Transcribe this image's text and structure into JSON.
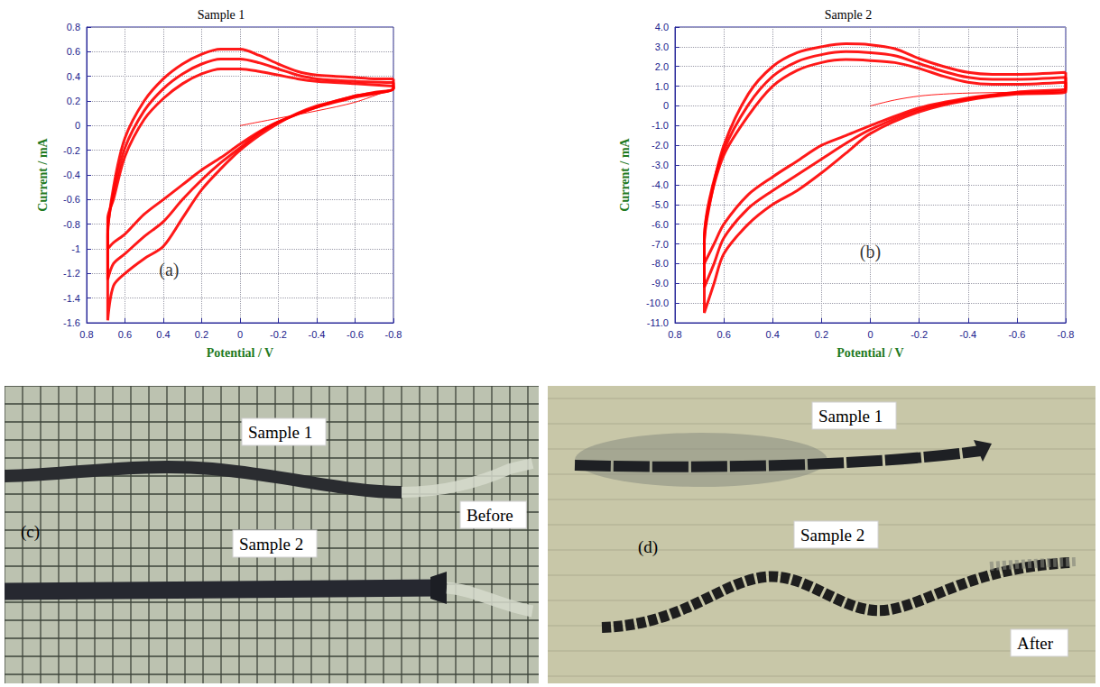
{
  "chart_data": [
    {
      "type": "line",
      "title": "Sample 1",
      "x_label": "Potential / V",
      "y_label": "Current / mA",
      "xlim": [
        0.8,
        -0.8
      ],
      "xticks": [
        0.8,
        0.6,
        0.4,
        0.2,
        0,
        -0.2,
        -0.4,
        -0.6,
        -0.8
      ],
      "ylim": [
        -1.6,
        0.8
      ],
      "yticks": [
        -1.6,
        -1.4,
        -1.2,
        -1,
        -0.8,
        -0.6,
        -0.4,
        -0.2,
        0,
        0.2,
        0.4,
        0.6,
        0.8
      ],
      "grid": true,
      "annotations": [
        {
          "text": "(a)",
          "x": 0.37,
          "y": -1.17
        }
      ],
      "series": [
        {
          "color": "#ff0000",
          "line_style": "solid",
          "values": [
            [
              0,
              0
            ],
            [
              -0.2,
              0.06
            ],
            [
              -0.4,
              0.12
            ],
            [
              -0.6,
              0.19
            ],
            [
              -0.8,
              0.3
            ]
          ]
        },
        {
          "color": "#ff0000",
          "line_style": "solid",
          "values": [
            [
              -0.8,
              0.38
            ],
            [
              -0.7,
              0.38
            ],
            [
              -0.6,
              0.39
            ],
            [
              -0.5,
              0.4
            ],
            [
              -0.4,
              0.41
            ],
            [
              -0.3,
              0.44
            ],
            [
              -0.2,
              0.5
            ],
            [
              -0.1,
              0.57
            ],
            [
              0,
              0.62
            ],
            [
              0.1,
              0.62
            ],
            [
              0.2,
              0.58
            ],
            [
              0.3,
              0.5
            ],
            [
              0.4,
              0.38
            ],
            [
              0.5,
              0.2
            ],
            [
              0.6,
              -0.1
            ],
            [
              0.66,
              -0.5
            ],
            [
              0.69,
              -0.9
            ],
            [
              0.69,
              -1.58
            ],
            [
              0.66,
              -1.3
            ],
            [
              0.6,
              -1.2
            ],
            [
              0.5,
              -1.08
            ],
            [
              0.4,
              -0.98
            ],
            [
              0.3,
              -0.75
            ],
            [
              0.2,
              -0.52
            ],
            [
              0.1,
              -0.35
            ],
            [
              0,
              -0.2
            ],
            [
              -0.1,
              -0.08
            ],
            [
              -0.2,
              0.02
            ],
            [
              -0.3,
              0.1
            ],
            [
              -0.4,
              0.16
            ],
            [
              -0.5,
              0.2
            ],
            [
              -0.6,
              0.24
            ],
            [
              -0.7,
              0.27
            ],
            [
              -0.8,
              0.3
            ],
            [
              -0.8,
              0.38
            ]
          ]
        },
        {
          "color": "#ff0000",
          "line_style": "solid",
          "values": [
            [
              -0.8,
              0.35
            ],
            [
              -0.6,
              0.36
            ],
            [
              -0.4,
              0.38
            ],
            [
              -0.3,
              0.41
            ],
            [
              -0.2,
              0.46
            ],
            [
              -0.1,
              0.51
            ],
            [
              0,
              0.54
            ],
            [
              0.1,
              0.54
            ],
            [
              0.2,
              0.5
            ],
            [
              0.3,
              0.42
            ],
            [
              0.4,
              0.3
            ],
            [
              0.5,
              0.12
            ],
            [
              0.6,
              -0.18
            ],
            [
              0.66,
              -0.55
            ],
            [
              0.69,
              -0.85
            ],
            [
              0.69,
              -1.25
            ],
            [
              0.66,
              -1.12
            ],
            [
              0.6,
              -1.04
            ],
            [
              0.5,
              -0.9
            ],
            [
              0.4,
              -0.78
            ],
            [
              0.3,
              -0.6
            ],
            [
              0.2,
              -0.44
            ],
            [
              0.1,
              -0.3
            ],
            [
              0,
              -0.18
            ],
            [
              -0.1,
              -0.06
            ],
            [
              -0.2,
              0.03
            ],
            [
              -0.4,
              0.15
            ],
            [
              -0.6,
              0.24
            ],
            [
              -0.8,
              0.3
            ],
            [
              -0.8,
              0.35
            ]
          ]
        },
        {
          "color": "#ff0000",
          "line_style": "solid",
          "values": [
            [
              -0.8,
              0.32
            ],
            [
              -0.6,
              0.34
            ],
            [
              -0.4,
              0.36
            ],
            [
              -0.3,
              0.38
            ],
            [
              -0.2,
              0.41
            ],
            [
              -0.1,
              0.44
            ],
            [
              0,
              0.46
            ],
            [
              0.1,
              0.46
            ],
            [
              0.2,
              0.42
            ],
            [
              0.3,
              0.34
            ],
            [
              0.4,
              0.22
            ],
            [
              0.5,
              0.05
            ],
            [
              0.6,
              -0.25
            ],
            [
              0.66,
              -0.6
            ],
            [
              0.69,
              -0.75
            ],
            [
              0.69,
              -1.0
            ],
            [
              0.66,
              -0.95
            ],
            [
              0.6,
              -0.88
            ],
            [
              0.5,
              -0.72
            ],
            [
              0.4,
              -0.6
            ],
            [
              0.3,
              -0.48
            ],
            [
              0.2,
              -0.36
            ],
            [
              0.1,
              -0.26
            ],
            [
              0,
              -0.15
            ],
            [
              -0.1,
              -0.05
            ],
            [
              -0.2,
              0.03
            ],
            [
              -0.4,
              0.15
            ],
            [
              -0.6,
              0.23
            ],
            [
              -0.8,
              0.3
            ],
            [
              -0.8,
              0.32
            ]
          ]
        }
      ]
    },
    {
      "type": "line",
      "title": "Sample 2",
      "x_label": "Potential / V",
      "y_label": "Current / mA",
      "xlim": [
        0.8,
        -0.8
      ],
      "xticks": [
        0.8,
        0.6,
        0.4,
        0.2,
        0,
        -0.2,
        -0.4,
        -0.6,
        -0.8
      ],
      "ylim": [
        -11,
        4
      ],
      "yticks": [
        {
          "value": -11,
          "label": "-11.0"
        },
        {
          "value": -10,
          "label": "-10.0"
        },
        {
          "value": -9,
          "label": "-9.0"
        },
        {
          "value": -8,
          "label": "-8.0"
        },
        {
          "value": -7,
          "label": "-7.0"
        },
        {
          "value": -6,
          "label": "-6.0"
        },
        {
          "value": -5,
          "label": "-5.0"
        },
        {
          "value": -4,
          "label": "-4.0"
        },
        {
          "value": -3,
          "label": "-3.0"
        },
        {
          "value": -2,
          "label": "-2.0"
        },
        {
          "value": -1,
          "label": "-1.0"
        },
        0,
        {
          "value": 1,
          "label": "1.0"
        },
        {
          "value": 2,
          "label": "2.0"
        },
        {
          "value": 3,
          "label": "3.0"
        },
        {
          "value": 4,
          "label": "4.0"
        }
      ],
      "grid": true,
      "annotations": [
        {
          "text": "(b)",
          "x": 0.0,
          "y": -7.4
        }
      ],
      "series": [
        {
          "color": "#ff0000",
          "line_style": "solid",
          "values": [
            [
              0,
              0
            ],
            [
              -0.1,
              0.3
            ],
            [
              -0.2,
              0.5
            ],
            [
              -0.3,
              0.6
            ],
            [
              -0.4,
              0.65
            ],
            [
              -0.6,
              0.7
            ],
            [
              -0.8,
              0.8
            ]
          ]
        },
        {
          "color": "#ff0000",
          "line_style": "solid",
          "values": [
            [
              -0.8,
              1.7
            ],
            [
              -0.6,
              1.6
            ],
            [
              -0.5,
              1.6
            ],
            [
              -0.4,
              1.7
            ],
            [
              -0.3,
              2.0
            ],
            [
              -0.2,
              2.4
            ],
            [
              -0.1,
              2.9
            ],
            [
              0,
              3.1
            ],
            [
              0.1,
              3.15
            ],
            [
              0.2,
              3.0
            ],
            [
              0.3,
              2.7
            ],
            [
              0.4,
              2.0
            ],
            [
              0.5,
              0.6
            ],
            [
              0.6,
              -2.0
            ],
            [
              0.65,
              -4.5
            ],
            [
              0.68,
              -7.0
            ],
            [
              0.68,
              -10.5
            ],
            [
              0.64,
              -9.0
            ],
            [
              0.6,
              -7.5
            ],
            [
              0.5,
              -6.0
            ],
            [
              0.4,
              -5.0
            ],
            [
              0.3,
              -4.3
            ],
            [
              0.2,
              -3.4
            ],
            [
              0.1,
              -2.4
            ],
            [
              0,
              -1.4
            ],
            [
              -0.2,
              -0.3
            ],
            [
              -0.4,
              0.3
            ],
            [
              -0.6,
              0.6
            ],
            [
              -0.8,
              0.7
            ],
            [
              -0.8,
              1.7
            ]
          ]
        },
        {
          "color": "#ff0000",
          "line_style": "solid",
          "values": [
            [
              -0.8,
              1.45
            ],
            [
              -0.6,
              1.35
            ],
            [
              -0.5,
              1.35
            ],
            [
              -0.4,
              1.45
            ],
            [
              -0.3,
              1.75
            ],
            [
              -0.2,
              2.15
            ],
            [
              -0.1,
              2.55
            ],
            [
              0,
              2.7
            ],
            [
              0.1,
              2.75
            ],
            [
              0.2,
              2.6
            ],
            [
              0.3,
              2.25
            ],
            [
              0.4,
              1.5
            ],
            [
              0.5,
              0.05
            ],
            [
              0.6,
              -2.25
            ],
            [
              0.66,
              -4.8
            ],
            [
              0.68,
              -6.9
            ],
            [
              0.68,
              -9.2
            ],
            [
              0.64,
              -8.0
            ],
            [
              0.6,
              -6.7
            ],
            [
              0.5,
              -5.2
            ],
            [
              0.4,
              -4.3
            ],
            [
              0.3,
              -3.5
            ],
            [
              0.2,
              -2.7
            ],
            [
              0.1,
              -1.9
            ],
            [
              0,
              -1.2
            ],
            [
              -0.2,
              -0.2
            ],
            [
              -0.4,
              0.35
            ],
            [
              -0.6,
              0.65
            ],
            [
              -0.8,
              0.8
            ],
            [
              -0.8,
              1.45
            ]
          ]
        },
        {
          "color": "#ff0000",
          "line_style": "solid",
          "values": [
            [
              -0.8,
              1.2
            ],
            [
              -0.6,
              1.1
            ],
            [
              -0.5,
              1.1
            ],
            [
              -0.4,
              1.2
            ],
            [
              -0.3,
              1.5
            ],
            [
              -0.2,
              1.9
            ],
            [
              -0.1,
              2.2
            ],
            [
              0,
              2.3
            ],
            [
              0.1,
              2.35
            ],
            [
              0.2,
              2.2
            ],
            [
              0.3,
              1.8
            ],
            [
              0.4,
              1.0
            ],
            [
              0.5,
              -0.5
            ],
            [
              0.6,
              -2.5
            ],
            [
              0.66,
              -5.0
            ],
            [
              0.68,
              -6.8
            ],
            [
              0.68,
              -8.0
            ],
            [
              0.64,
              -7.0
            ],
            [
              0.6,
              -6.0
            ],
            [
              0.5,
              -4.5
            ],
            [
              0.4,
              -3.6
            ],
            [
              0.3,
              -2.8
            ],
            [
              0.2,
              -2.0
            ],
            [
              0.1,
              -1.5
            ],
            [
              0,
              -1.0
            ],
            [
              -0.2,
              -0.1
            ],
            [
              -0.4,
              0.4
            ],
            [
              -0.6,
              0.7
            ],
            [
              -0.8,
              0.9
            ],
            [
              -0.8,
              1.2
            ]
          ]
        }
      ]
    }
  ],
  "photos": [
    {
      "label": "(c)",
      "caption": "Before",
      "samples": [
        "Sample 1",
        "Sample 2"
      ]
    },
    {
      "label": "(d)",
      "caption": "After",
      "samples": [
        "Sample 1",
        "Sample 2"
      ]
    }
  ]
}
